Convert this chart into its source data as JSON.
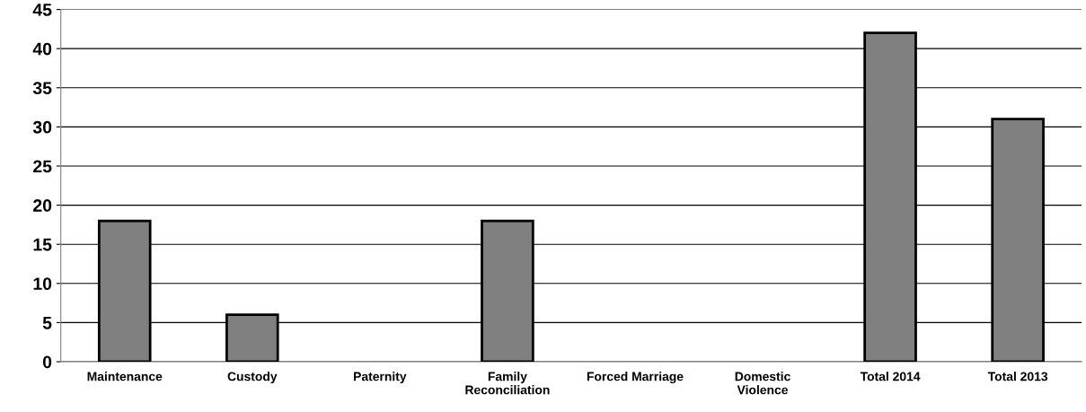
{
  "chart_data": {
    "type": "bar",
    "categories": [
      "Maintenance",
      "Custody",
      "Paternity",
      "Family\nReconciliation",
      "Forced Marriage",
      "Domestic\nViolence",
      "Total 2014",
      "Total 2013"
    ],
    "values": [
      18,
      6,
      0,
      18,
      0,
      0,
      42,
      31
    ],
    "color": "#808080",
    "ylim": [
      0,
      45
    ],
    "yticks": [
      0,
      5,
      10,
      15,
      20,
      25,
      30,
      35,
      40,
      45
    ],
    "grid": "y"
  }
}
